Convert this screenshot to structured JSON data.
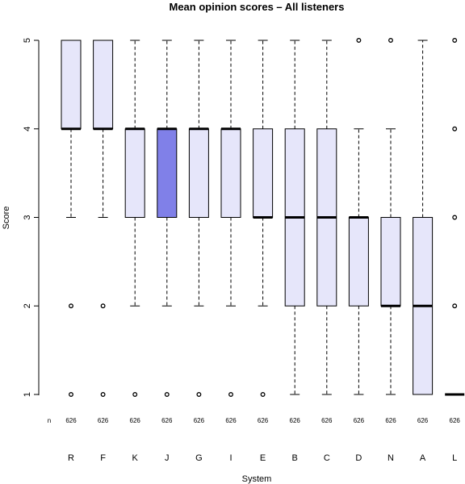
{
  "chart_data": {
    "type": "boxplot",
    "title": "Mean opinion scores – All listeners",
    "xlabel": "System",
    "ylabel": "Score",
    "ylim": [
      1,
      5
    ],
    "yticks": [
      "1",
      "2",
      "3",
      "4",
      "5"
    ],
    "n_label": "n",
    "colors": {
      "box_fill": "#e6e6fa",
      "highlight_fill": "#8080e8",
      "stroke": "#000000"
    },
    "systems": [
      {
        "name": "R",
        "n": "626",
        "q1": 4,
        "median": 4,
        "q3": 5,
        "whisker_low": 3,
        "whisker_high": 5,
        "outliers": [
          2,
          1
        ]
      },
      {
        "name": "F",
        "n": "626",
        "q1": 4,
        "median": 4,
        "q3": 5,
        "whisker_low": 3,
        "whisker_high": 5,
        "outliers": [
          2,
          1
        ]
      },
      {
        "name": "K",
        "n": "626",
        "q1": 3,
        "median": 4,
        "q3": 4,
        "whisker_low": 2,
        "whisker_high": 5,
        "outliers": [
          1
        ]
      },
      {
        "name": "J",
        "n": "626",
        "q1": 3,
        "median": 4,
        "q3": 4,
        "whisker_low": 2,
        "whisker_high": 5,
        "outliers": [
          1
        ],
        "highlight": true
      },
      {
        "name": "G",
        "n": "626",
        "q1": 3,
        "median": 4,
        "q3": 4,
        "whisker_low": 2,
        "whisker_high": 5,
        "outliers": [
          1
        ]
      },
      {
        "name": "I",
        "n": "626",
        "q1": 3,
        "median": 4,
        "q3": 4,
        "whisker_low": 2,
        "whisker_high": 5,
        "outliers": [
          1
        ]
      },
      {
        "name": "E",
        "n": "626",
        "q1": 3,
        "median": 3,
        "q3": 4,
        "whisker_low": 2,
        "whisker_high": 5,
        "outliers": [
          1
        ]
      },
      {
        "name": "B",
        "n": "626",
        "q1": 2,
        "median": 3,
        "q3": 4,
        "whisker_low": 1,
        "whisker_high": 5,
        "outliers": []
      },
      {
        "name": "C",
        "n": "626",
        "q1": 2,
        "median": 3,
        "q3": 4,
        "whisker_low": 1,
        "whisker_high": 5,
        "outliers": []
      },
      {
        "name": "D",
        "n": "626",
        "q1": 2,
        "median": 3,
        "q3": 3,
        "whisker_low": 1,
        "whisker_high": 4,
        "outliers": [
          5
        ]
      },
      {
        "name": "N",
        "n": "626",
        "q1": 2,
        "median": 2,
        "q3": 3,
        "whisker_low": 1,
        "whisker_high": 4,
        "outliers": [
          5
        ]
      },
      {
        "name": "A",
        "n": "626",
        "q1": 1,
        "median": 2,
        "q3": 3,
        "whisker_low": 1,
        "whisker_high": 5,
        "outliers": []
      },
      {
        "name": "L",
        "n": "626",
        "q1": 1,
        "median": 1,
        "q3": 1,
        "whisker_low": 1,
        "whisker_high": 1,
        "outliers": [
          5,
          4,
          3,
          2
        ]
      }
    ]
  }
}
